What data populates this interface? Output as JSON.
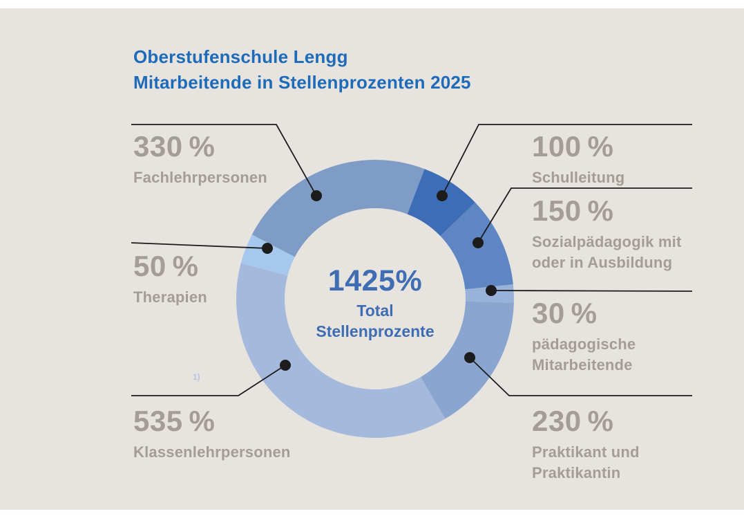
{
  "page": {
    "background": "#e7e3de"
  },
  "header": {
    "title": "Oberstufenschule Lengg",
    "subtitle": "Mitarbeitende in Stellenprozenten 2025"
  },
  "chart_data": {
    "type": "pie",
    "variant": "donut",
    "title": "Oberstufenschule Lengg",
    "subtitle": "Mitarbeitende in Stellenprozenten 2025",
    "total": 1425,
    "start_angle_deg": -62.5,
    "clockwise": true,
    "center": {
      "value_label": "1425%",
      "caption": "Total\nStellenprozente"
    },
    "segments": [
      {
        "key": "fachlehrpersonen",
        "value": 330,
        "pct_label": "330 %",
        "name": "Fachlehrpersonen",
        "color": "#7f9cc7",
        "label_side": "left"
      },
      {
        "key": "schulleitung",
        "value": 100,
        "pct_label": "100 %",
        "name": "Schulleitung",
        "color": "#3d6db6",
        "label_side": "right"
      },
      {
        "key": "sozialpaedagogik",
        "value": 150,
        "pct_label": "150 %",
        "name": "Sozialpädagogik mit\noder in Ausbildung",
        "color": "#5e86c3",
        "label_side": "right"
      },
      {
        "key": "paedagogische-mitarbeitende",
        "value": 30,
        "pct_label": "30 %",
        "name": "pädagogische\nMitarbeitende",
        "color": "#98b2da",
        "label_side": "right"
      },
      {
        "key": "praktikant-praktikantin",
        "value": 230,
        "pct_label": "230 %",
        "name": "Praktikant und\nPraktikantin",
        "color": "#8aa6d0",
        "label_side": "right"
      },
      {
        "key": "klassenlehrpersonen",
        "value": 535,
        "pct_label": "535 %",
        "name": "Klassenlehrpersonen",
        "color": "#a4b9db",
        "label_side": "left"
      },
      {
        "key": "therapien",
        "value": 50,
        "pct_label": "50 %",
        "name": "Therapien",
        "color": "#a6c8ee",
        "label_side": "left"
      }
    ],
    "footnote_marker": "1)"
  },
  "colors": {
    "background": "#e7e3de",
    "title": "#1e6cb9",
    "center_text": "#3e6db3",
    "label_text": "#a49c96",
    "leader_line": "#1c1c1c",
    "footnote": "#b6c4e0"
  }
}
